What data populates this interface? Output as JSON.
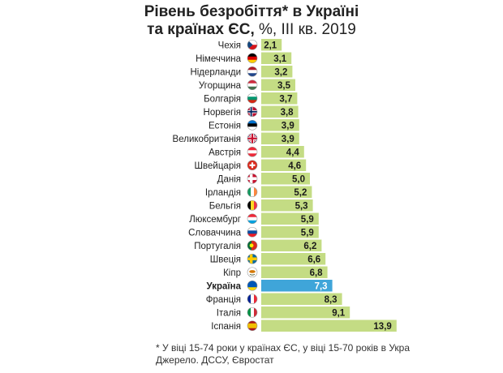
{
  "title": {
    "line1": "Рівень безробіття* в Україні",
    "line2_bold": "та країнах ЄС,",
    "line2_rest": " %, III кв. 2019"
  },
  "colors": {
    "bar": "#c4dc84",
    "bar_highlight": "#3fa5d9",
    "label_text": "#222222",
    "value_text": "#1a1a1a",
    "value_text_highlight": "#ffffff"
  },
  "chart_data": {
    "type": "bar",
    "orientation": "horizontal",
    "categories": [
      "Чехія",
      "Німеччина",
      "Нідерланди",
      "Угорщина",
      "Болгарія",
      "Норвегія",
      "Естонія",
      "Великобританія",
      "Австрія",
      "Швейцарія",
      "Данія",
      "Ірландія",
      "Бельгія",
      "Люксембург",
      "Словаччина",
      "Португалія",
      "Швеція",
      "Кіпр",
      "Україна",
      "Франція",
      "Італія",
      "Іспанія"
    ],
    "values": [
      2.1,
      3.1,
      3.2,
      3.5,
      3.7,
      3.8,
      3.9,
      3.9,
      4.4,
      4.6,
      5.0,
      5.2,
      5.3,
      5.9,
      5.9,
      6.2,
      6.6,
      6.8,
      7.3,
      8.3,
      9.1,
      13.9
    ],
    "value_labels": [
      "2,1",
      "3,1",
      "3,2",
      "3,5",
      "3,7",
      "3,8",
      "3,9",
      "3,9",
      "4,4",
      "4,6",
      "5,0",
      "5,2",
      "5,3",
      "5,9",
      "5,9",
      "6,2",
      "6,6",
      "6,8",
      "7,3",
      "8,3",
      "9,1",
      "13,9"
    ],
    "highlight": "Україна",
    "flags": [
      "cz",
      "de",
      "nl",
      "hu",
      "bg",
      "no",
      "ee",
      "gb",
      "at",
      "ch",
      "dk",
      "ie",
      "be",
      "lu",
      "sk",
      "pt",
      "se",
      "cy",
      "ua",
      "fr",
      "it",
      "es"
    ],
    "grid": false
  },
  "footnote": {
    "line1": "* У віці 15-74 роки у країнах ЄС, у віці 15-70 років в Укра",
    "line2": "Джерело. ДССУ, Євростат"
  }
}
